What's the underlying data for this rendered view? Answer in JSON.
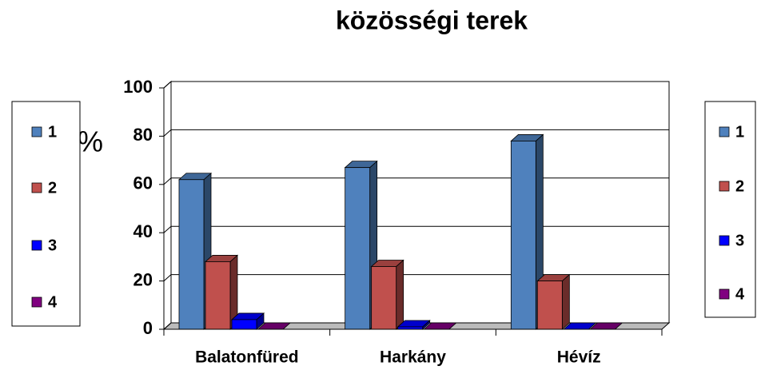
{
  "chart_data": {
    "type": "bar",
    "title": "közösségi terek",
    "y_label": "%",
    "categories": [
      "Balatonfüred",
      "Harkány",
      "Hévíz"
    ],
    "series": [
      {
        "name": "1",
        "color": "#4f81bd",
        "values": [
          62,
          67,
          78
        ]
      },
      {
        "name": "2",
        "color": "#c0504d",
        "values": [
          28,
          26,
          20
        ]
      },
      {
        "name": "3",
        "color": "#0000ff",
        "values": [
          4,
          1,
          0
        ]
      },
      {
        "name": "4",
        "color": "#800080",
        "values": [
          0,
          0,
          0
        ]
      }
    ],
    "ylim": [
      0,
      100
    ],
    "yticks": [
      0,
      20,
      40,
      60,
      80,
      100
    ],
    "grid": true
  }
}
